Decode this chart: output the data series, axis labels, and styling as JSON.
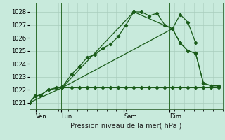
{
  "title": "Pression niveau de la mer( hPa )",
  "bg_color": "#c8eadc",
  "grid_color": "#a8ccbc",
  "line_color": "#1a5c1a",
  "vline_color": "#2d6e2d",
  "ylim": [
    1020.5,
    1028.7
  ],
  "yticks": [
    1021,
    1022,
    1023,
    1024,
    1025,
    1026,
    1027,
    1028
  ],
  "day_labels": [
    "Ven",
    "Lun",
    "Sam",
    "Dim"
  ],
  "xlim": [
    0,
    100
  ],
  "curve1_x": [
    0,
    3,
    6,
    10,
    14,
    17,
    22,
    26,
    30,
    34,
    38,
    42,
    46,
    50,
    54,
    58,
    62,
    66,
    70,
    74,
    78,
    82,
    86
  ],
  "curve1_y": [
    1021.0,
    1021.5,
    1021.6,
    1022.0,
    1022.1,
    1022.2,
    1023.2,
    1023.8,
    1024.5,
    1024.7,
    1025.2,
    1025.5,
    1026.1,
    1027.0,
    1028.0,
    1028.0,
    1027.7,
    1027.9,
    1027.0,
    1026.7,
    1027.8,
    1027.2,
    1025.6
  ],
  "curve2_x": [
    0,
    3,
    6,
    10,
    14,
    17,
    22,
    26,
    30,
    34,
    38,
    42,
    46,
    50,
    54,
    58,
    62,
    66,
    70,
    74,
    78,
    82,
    86,
    90,
    94,
    98
  ],
  "curve2_y": [
    1021.0,
    1021.5,
    1021.6,
    1022.0,
    1022.15,
    1022.15,
    1022.15,
    1022.15,
    1022.15,
    1022.15,
    1022.15,
    1022.15,
    1022.15,
    1022.15,
    1022.15,
    1022.15,
    1022.15,
    1022.15,
    1022.15,
    1022.15,
    1022.15,
    1022.15,
    1022.15,
    1022.15,
    1022.15,
    1022.15
  ],
  "curve3_x": [
    0,
    17,
    54,
    74,
    78,
    82,
    86,
    90,
    94,
    98
  ],
  "curve3_y": [
    1021.0,
    1022.15,
    1028.0,
    1026.7,
    1025.6,
    1025.0,
    1024.8,
    1022.5,
    1022.3,
    1022.3
  ],
  "curve4_x": [
    17,
    74,
    78,
    82,
    86,
    90,
    94,
    98
  ],
  "curve4_y": [
    1022.15,
    1026.7,
    1025.6,
    1025.0,
    1024.8,
    1022.5,
    1022.3,
    1022.3
  ]
}
